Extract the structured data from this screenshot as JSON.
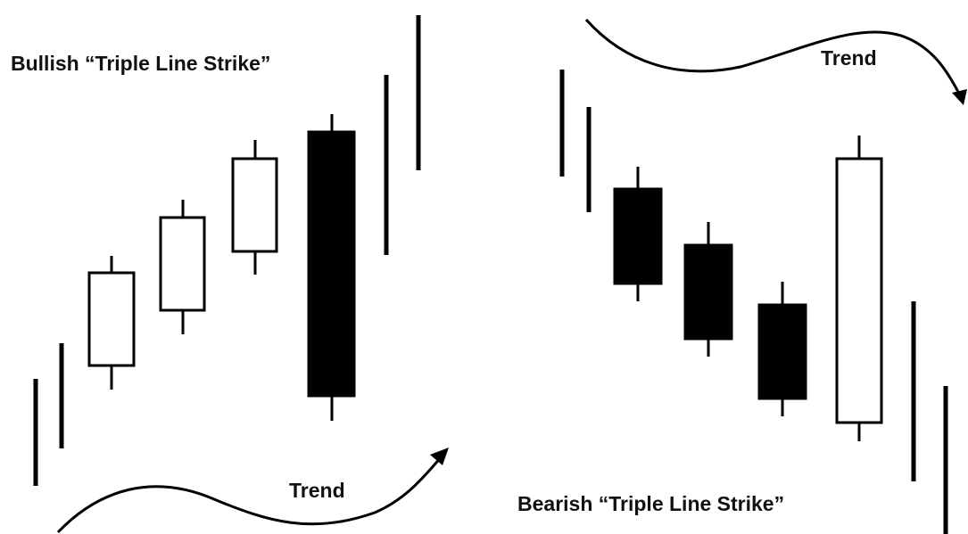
{
  "bullish": {
    "title": "Bullish “Triple Line Strike”",
    "trend": "Trend"
  },
  "bearish": {
    "title": "Bearish “Triple Line Strike”",
    "trend": "Trend"
  }
}
